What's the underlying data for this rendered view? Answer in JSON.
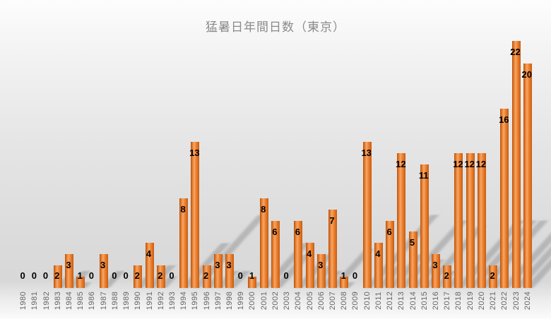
{
  "chart_data": {
    "type": "bar",
    "title": "猛暑日年間日数（東京）",
    "xlabel": "",
    "ylabel": "",
    "ylim": [
      0,
      23
    ],
    "grid": false,
    "legend": "none",
    "data_labels": true,
    "categories": [
      "1980",
      "1981",
      "1982",
      "1983",
      "1984",
      "1985",
      "1986",
      "1987",
      "1988",
      "1989",
      "1990",
      "1991",
      "1992",
      "1993",
      "1994",
      "1995",
      "1996",
      "1997",
      "1998",
      "1999",
      "2000",
      "2001",
      "2002",
      "2003",
      "2004",
      "2005",
      "2006",
      "2007",
      "2008",
      "2009",
      "2010",
      "2011",
      "2012",
      "2013",
      "2014",
      "2015",
      "2016",
      "2017",
      "2018",
      "2019",
      "2020",
      "2021",
      "2022",
      "2023",
      "2024"
    ],
    "values": [
      0,
      0,
      0,
      2,
      3,
      1,
      0,
      3,
      0,
      0,
      2,
      4,
      2,
      0,
      8,
      13,
      2,
      3,
      3,
      0,
      1,
      8,
      6,
      0,
      6,
      4,
      3,
      7,
      1,
      0,
      13,
      4,
      6,
      12,
      5,
      11,
      3,
      2,
      12,
      12,
      12,
      2,
      16,
      22,
      20
    ],
    "colors": {
      "bar": "#ED7D31",
      "bar_edge_dark": "#B05510",
      "bar_highlight": "#F7A765",
      "value_label": "#000000",
      "axis_tick_label": "#666666",
      "title": "#8A8A8A",
      "background_mid": "#D8D8D8"
    }
  }
}
